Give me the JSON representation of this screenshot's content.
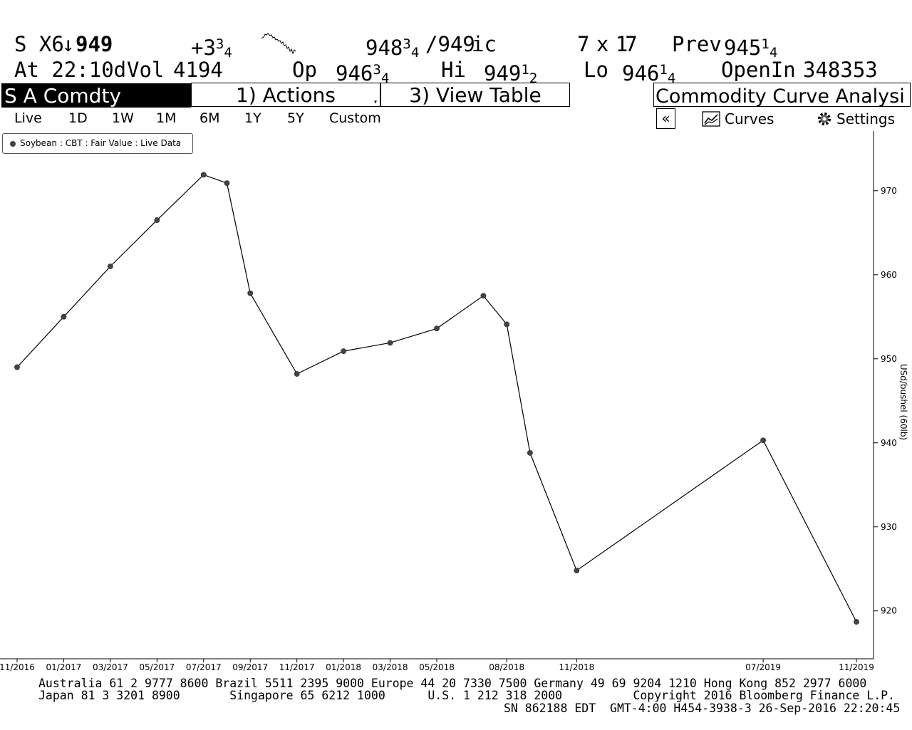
{
  "quote": {
    "ticker": "S X6",
    "arrow": "↓",
    "last": "949",
    "change_whole": "+3",
    "change_num": "3",
    "change_den": "4",
    "bid_whole": "948",
    "bid_num": "3",
    "bid_den": "4",
    "ask": "/949",
    "ask_suffix": "ic",
    "size": "7 x 17",
    "prev_label": "Prev",
    "prev_whole": "945",
    "prev_num": "1",
    "prev_den": "4",
    "time": "At 22:10d",
    "vol_label": "Vol",
    "vol": "4194",
    "op_label": "Op",
    "op_whole": "946",
    "op_num": "3",
    "op_den": "4",
    "hi_label": "Hi",
    "hi_whole": "949",
    "hi_num": "1",
    "hi_den": "2",
    "lo_label": "Lo",
    "lo_whole": "946",
    "lo_num": "1",
    "lo_den": "4",
    "openint_label": "OpenIn",
    "openint": "348353"
  },
  "function_bar": {
    "security": "S A Comdty",
    "actions": "1) Actions",
    "view_table": "3) View Table",
    "function_title": "Commodity Curve Analysi"
  },
  "ranges": [
    "Live",
    "1D",
    "1W",
    "1M",
    "6M",
    "1Y",
    "5Y",
    "Custom"
  ],
  "toolbar": {
    "collapse": "«",
    "curves": "Curves",
    "settings": "Settings"
  },
  "colors": {
    "line": "#000000",
    "marker": "#444444",
    "header_bg": "#000000"
  },
  "chart_data": {
    "type": "line",
    "series": [
      {
        "name": "Soybean : CBT : Fair Value : Live Data",
        "points": [
          {
            "x": "2016-11",
            "y": 949.0
          },
          {
            "x": "2017-01",
            "y": 955.0
          },
          {
            "x": "2017-03",
            "y": 961.0
          },
          {
            "x": "2017-05",
            "y": 966.5
          },
          {
            "x": "2017-07",
            "y": 971.9
          },
          {
            "x": "2017-08",
            "y": 970.9
          },
          {
            "x": "2017-09",
            "y": 957.8
          },
          {
            "x": "2017-11",
            "y": 948.2
          },
          {
            "x": "2018-01",
            "y": 950.9
          },
          {
            "x": "2018-03",
            "y": 951.9
          },
          {
            "x": "2018-05",
            "y": 953.6
          },
          {
            "x": "2018-07",
            "y": 957.5
          },
          {
            "x": "2018-08",
            "y": 954.1
          },
          {
            "x": "2018-09",
            "y": 938.8
          },
          {
            "x": "2018-11",
            "y": 924.8
          },
          {
            "x": "2019-07",
            "y": 940.3
          },
          {
            "x": "2019-11",
            "y": 918.7
          }
        ]
      }
    ],
    "x_tick_labels": [
      "11/2016",
      "01/2017",
      "03/2017",
      "05/2017",
      "07/2017",
      "09/2017",
      "11/2017",
      "01/2018",
      "03/2018",
      "05/2018",
      "08/2018",
      "11/2018",
      "07/2019",
      "11/2019"
    ],
    "x_tick_values": [
      "2016-11",
      "2017-01",
      "2017-03",
      "2017-05",
      "2017-07",
      "2017-09",
      "2017-11",
      "2018-01",
      "2018-03",
      "2018-05",
      "2018-08",
      "2018-11",
      "2019-07",
      "2019-11"
    ],
    "y_ticks": [
      920,
      930,
      940,
      950,
      960,
      970
    ],
    "ylabel": "USd/bushel (60lb)",
    "ylim": [
      914.3,
      977.1
    ],
    "y_axis_side": "right",
    "grid": false,
    "legend_position": "top-left"
  },
  "footer": {
    "line1": "Australia 61 2 9777 8600 Brazil 5511 2395 9000 Europe 44 20 7330 7500 Germany 49 69 9204 1210 Hong Kong 852 2977 6000",
    "line2": "Japan 81 3 3201 8900       Singapore 65 6212 1000      U.S. 1 212 318 2000          Copyright 2016 Bloomberg Finance L.P.",
    "line3": "SN 862188 EDT  GMT-4:00 H454-3938-3 26-Sep-2016 22:20:45"
  }
}
